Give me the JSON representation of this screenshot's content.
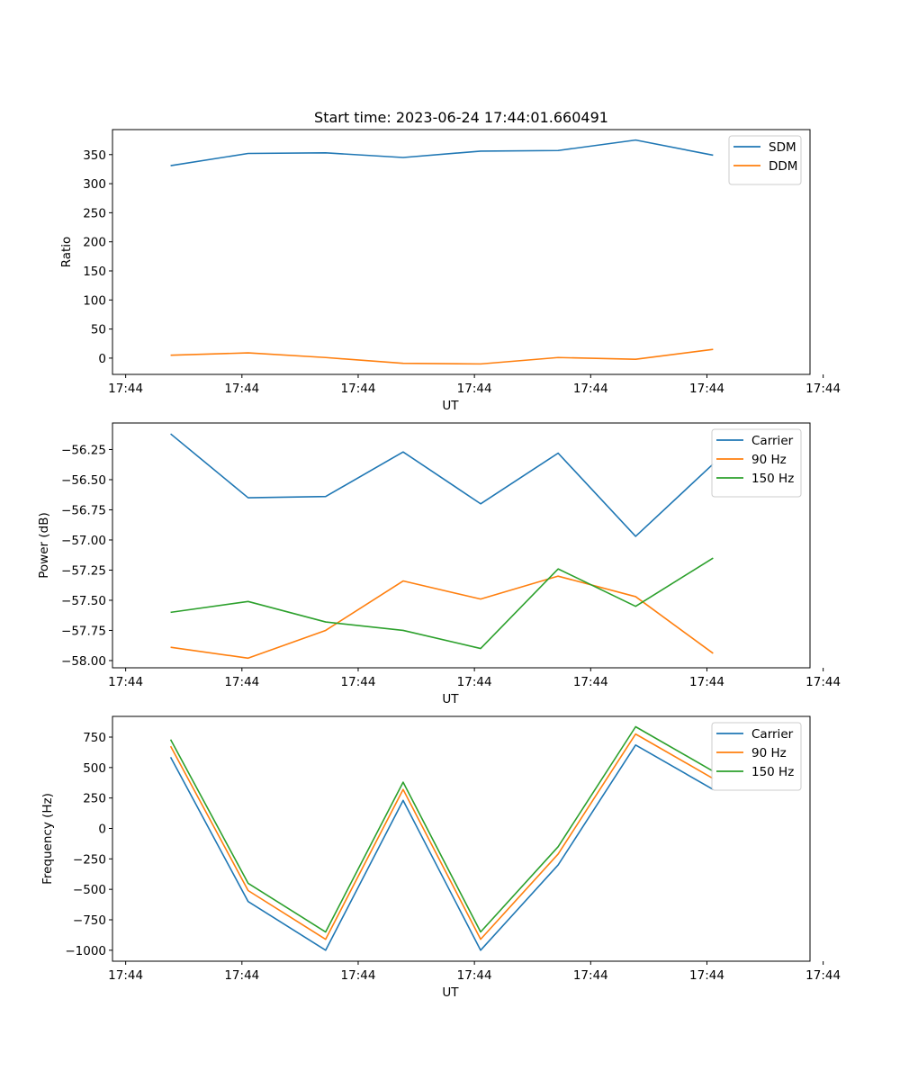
{
  "chart_data": [
    {
      "type": "line",
      "title": "Start time: 2023-06-24 17:44:01.660491",
      "xlabel": "UT",
      "ylabel": "Ratio",
      "x": [
        1,
        2,
        3,
        4,
        5,
        6,
        7,
        8
      ],
      "xlim": [
        0.25,
        9.25
      ],
      "x_ticks": [
        0.42,
        1.92,
        3.42,
        4.92,
        6.42,
        7.92,
        9.42
      ],
      "x_tick_labels": [
        "17:44",
        "17:44",
        "17:44",
        "17:44",
        "17:44",
        "17:44",
        "17:44"
      ],
      "ylim": [
        -28,
        393
      ],
      "y_ticks": [
        0,
        50,
        100,
        150,
        200,
        250,
        300,
        350
      ],
      "y_tick_labels": [
        "0",
        "50",
        "100",
        "150",
        "200",
        "250",
        "300",
        "350"
      ],
      "grid": false,
      "legend_position": "top-right",
      "series": [
        {
          "name": "SDM",
          "color": "#1f77b4",
          "values": [
            331,
            352,
            353,
            345,
            356,
            357,
            375,
            349
          ]
        },
        {
          "name": "DDM",
          "color": "#ff7f0e",
          "values": [
            5,
            9,
            1,
            -9,
            -10,
            1,
            -2,
            15
          ]
        }
      ]
    },
    {
      "type": "line",
      "title": "",
      "xlabel": "UT",
      "ylabel": "Power (dB)",
      "x": [
        1,
        2,
        3,
        4,
        5,
        6,
        7,
        8
      ],
      "xlim": [
        0.25,
        9.25
      ],
      "x_ticks": [
        0.42,
        1.92,
        3.42,
        4.92,
        6.42,
        7.92,
        9.42
      ],
      "x_tick_labels": [
        "17:44",
        "17:44",
        "17:44",
        "17:44",
        "17:44",
        "17:44",
        "17:44"
      ],
      "ylim": [
        -58.06,
        -56.03
      ],
      "y_ticks": [
        -58.0,
        -57.75,
        -57.5,
        -57.25,
        -57.0,
        -56.75,
        -56.5,
        -56.25
      ],
      "y_tick_labels": [
        "−58.00",
        "−57.75",
        "−57.50",
        "−57.25",
        "−57.00",
        "−56.75",
        "−56.50",
        "−56.25"
      ],
      "grid": false,
      "legend_position": "top-right",
      "series": [
        {
          "name": "Carrier",
          "color": "#1f77b4",
          "values": [
            -56.12,
            -56.65,
            -56.64,
            -56.27,
            -56.7,
            -56.28,
            -56.97,
            -56.37
          ]
        },
        {
          "name": "90 Hz",
          "color": "#ff7f0e",
          "values": [
            -57.89,
            -57.98,
            -57.75,
            -57.34,
            -57.49,
            -57.3,
            -57.47,
            -57.94
          ]
        },
        {
          "name": "150 Hz",
          "color": "#2ca02c",
          "values": [
            -57.6,
            -57.51,
            -57.68,
            -57.75,
            -57.9,
            -57.24,
            -57.55,
            -57.15
          ]
        }
      ]
    },
    {
      "type": "line",
      "title": "",
      "xlabel": "UT",
      "ylabel": "Frequency (Hz)",
      "x": [
        1,
        2,
        3,
        4,
        5,
        6,
        7,
        8
      ],
      "xlim": [
        0.25,
        9.25
      ],
      "x_ticks": [
        0.42,
        1.92,
        3.42,
        4.92,
        6.42,
        7.92,
        9.42
      ],
      "x_tick_labels": [
        "17:44",
        "17:44",
        "17:44",
        "17:44",
        "17:44",
        "17:44",
        "17:44"
      ],
      "ylim": [
        -1090,
        920
      ],
      "y_ticks": [
        -1000,
        -750,
        -500,
        -250,
        0,
        250,
        500,
        750
      ],
      "y_tick_labels": [
        "−1000",
        "−750",
        "−500",
        "−250",
        "0",
        "250",
        "500",
        "750"
      ],
      "grid": false,
      "legend_position": "top-right",
      "series": [
        {
          "name": "Carrier",
          "color": "#1f77b4",
          "values": [
            585,
            -600,
            -1000,
            230,
            -1000,
            -300,
            685,
            320
          ]
        },
        {
          "name": "90 Hz",
          "color": "#ff7f0e",
          "values": [
            675,
            -510,
            -910,
            320,
            -910,
            -210,
            775,
            410
          ]
        },
        {
          "name": "150 Hz",
          "color": "#2ca02c",
          "values": [
            730,
            -450,
            -850,
            380,
            -850,
            -150,
            835,
            470
          ]
        }
      ]
    }
  ]
}
